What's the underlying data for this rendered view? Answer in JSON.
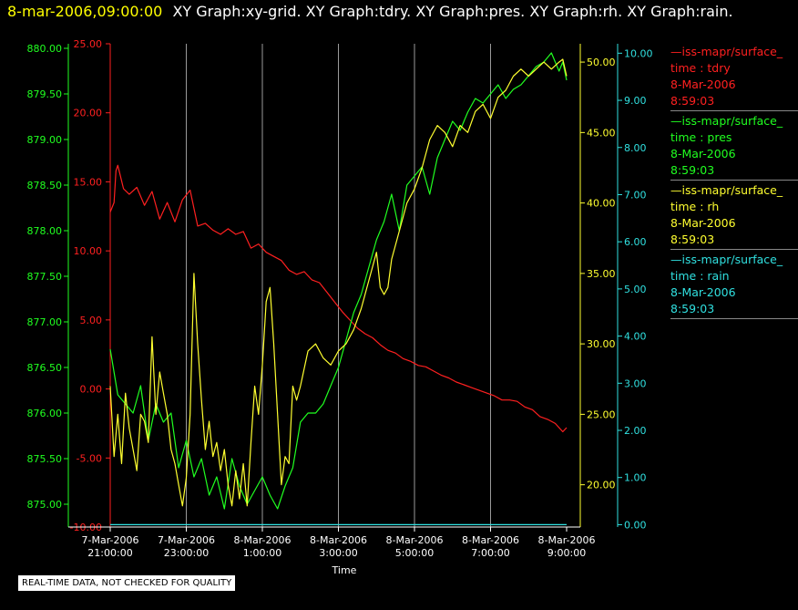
{
  "title": {
    "date": "8-mar-2006,09:00:00",
    "graphs": "XY Graph:xy-grid.  XY Graph:tdry.  XY Graph:pres.  XY Graph:rh.  XY Graph:rain."
  },
  "disclaimer": "REAL-TIME DATA, NOT CHECKED FOR QUALITY",
  "legend": [
    {
      "name": "—iss-mapr/surface_",
      "var": "time : tdry",
      "date": "8-Mar-2006",
      "time": "8:59:03",
      "color": "#ff2020"
    },
    {
      "name": "—iss-mapr/surface_",
      "var": "time : pres",
      "date": "8-Mar-2006",
      "time": "8:59:03",
      "color": "#20ff20"
    },
    {
      "name": "—iss-mapr/surface_",
      "var": "time : rh",
      "date": "8-Mar-2006",
      "time": "8:59:03",
      "color": "#ffff30"
    },
    {
      "name": "—iss-mapr/surface_",
      "var": "time : rain",
      "date": "8-Mar-2006",
      "time": "8:59:03",
      "color": "#30e0e0"
    }
  ],
  "chart_data": {
    "type": "line",
    "xlabel": "Time",
    "x_ticks": [
      {
        "date": "7-Mar-2006",
        "time": "21:00:00"
      },
      {
        "date": "7-Mar-2006",
        "time": "23:00:00"
      },
      {
        "date": "8-Mar-2006",
        "time": "1:00:00"
      },
      {
        "date": "8-Mar-2006",
        "time": "3:00:00"
      },
      {
        "date": "8-Mar-2006",
        "time": "5:00:00"
      },
      {
        "date": "8-Mar-2006",
        "time": "7:00:00"
      },
      {
        "date": "8-Mar-2006",
        "time": "9:00:00"
      }
    ],
    "x_range_hours": [
      0,
      12
    ],
    "grid": "vertical",
    "axes": {
      "tdry": {
        "color": "#ff2020",
        "range": [
          -10,
          25
        ],
        "ticks": [
          "-10.00",
          "-5.00",
          "0.00",
          "5.00",
          "10.00",
          "15.00",
          "20.00",
          "25.00"
        ]
      },
      "pres": {
        "color": "#20ff20",
        "range": [
          874.75,
          880.05
        ],
        "ticks": [
          "875.00",
          "875.50",
          "876.00",
          "876.50",
          "877.00",
          "877.50",
          "878.00",
          "878.50",
          "879.00",
          "879.50",
          "880.00"
        ]
      },
      "rh": {
        "color": "#ffff30",
        "range": [
          17.0,
          51.3
        ],
        "ticks": [
          "20.00",
          "25.00",
          "30.00",
          "35.00",
          "40.00",
          "45.00",
          "50.00"
        ]
      },
      "rain": {
        "color": "#30e0e0",
        "range": [
          -0.05,
          10.2
        ],
        "ticks": [
          "0.00",
          "1.00",
          "2.00",
          "3.00",
          "4.00",
          "5.00",
          "6.00",
          "7.00",
          "8.00",
          "9.00",
          "10.00"
        ]
      }
    },
    "series": [
      {
        "name": "tdry",
        "x": [
          0,
          0.1,
          0.15,
          0.2,
          0.35,
          0.5,
          0.7,
          0.9,
          1.1,
          1.3,
          1.5,
          1.7,
          1.9,
          2.1,
          2.3,
          2.5,
          2.7,
          2.9,
          3.1,
          3.3,
          3.5,
          3.7,
          3.9,
          4.1,
          4.3,
          4.5,
          4.7,
          4.9,
          5.1,
          5.3,
          5.5,
          5.7,
          5.9,
          6.1,
          6.3,
          6.5,
          6.7,
          6.9,
          7.1,
          7.3,
          7.5,
          7.7,
          7.9,
          8.1,
          8.3,
          8.5,
          8.7,
          8.9,
          9.1,
          9.3,
          9.5,
          9.7,
          9.9,
          10.1,
          10.3,
          10.5,
          10.7,
          10.9,
          11.1,
          11.3,
          11.5,
          11.7,
          11.9,
          12
        ],
        "y": [
          12.8,
          13.5,
          15.8,
          16.2,
          14.5,
          14.1,
          14.6,
          13.3,
          14.3,
          12.3,
          13.5,
          12.1,
          13.7,
          14.4,
          11.8,
          12.0,
          11.5,
          11.2,
          11.6,
          11.2,
          11.4,
          10.2,
          10.5,
          9.9,
          9.6,
          9.3,
          8.6,
          8.3,
          8.5,
          7.9,
          7.7,
          7.0,
          6.3,
          5.6,
          5.0,
          4.4,
          4.0,
          3.7,
          3.2,
          2.8,
          2.6,
          2.2,
          2.0,
          1.7,
          1.6,
          1.3,
          1.0,
          0.8,
          0.5,
          0.3,
          0.1,
          -0.1,
          -0.3,
          -0.5,
          -0.8,
          -0.8,
          -0.9,
          -1.3,
          -1.5,
          -2.0,
          -2.2,
          -2.5,
          -3.1,
          -2.8
        ]
      },
      {
        "name": "pres",
        "x": [
          0,
          0.2,
          0.4,
          0.6,
          0.8,
          1.0,
          1.2,
          1.4,
          1.6,
          1.8,
          2.0,
          2.2,
          2.4,
          2.6,
          2.8,
          3.0,
          3.2,
          3.4,
          3.6,
          3.8,
          4.0,
          4.2,
          4.4,
          4.6,
          4.8,
          5.0,
          5.2,
          5.4,
          5.6,
          5.8,
          6.0,
          6.2,
          6.4,
          6.6,
          6.8,
          7.0,
          7.2,
          7.4,
          7.6,
          7.8,
          8.0,
          8.2,
          8.4,
          8.6,
          8.8,
          9.0,
          9.2,
          9.4,
          9.6,
          9.8,
          10.0,
          10.2,
          10.4,
          10.6,
          10.8,
          11.0,
          11.2,
          11.4,
          11.6,
          11.8,
          11.9,
          12
        ],
        "y": [
          876.7,
          876.2,
          876.1,
          876.0,
          876.3,
          875.7,
          876.1,
          875.9,
          876.0,
          875.4,
          875.7,
          875.3,
          875.5,
          875.1,
          875.3,
          874.95,
          875.5,
          875.2,
          875.0,
          875.15,
          875.3,
          875.1,
          874.95,
          875.2,
          875.4,
          875.9,
          876.0,
          876.0,
          876.1,
          876.3,
          876.5,
          876.8,
          877.1,
          877.3,
          877.6,
          877.9,
          878.1,
          878.4,
          878.0,
          878.5,
          878.6,
          878.7,
          878.4,
          878.8,
          879.0,
          879.2,
          879.1,
          879.3,
          879.45,
          879.4,
          879.5,
          879.6,
          879.45,
          879.55,
          879.6,
          879.7,
          879.8,
          879.85,
          879.95,
          879.75,
          879.85,
          879.65
        ]
      },
      {
        "name": "rh",
        "x": [
          0,
          0.1,
          0.2,
          0.3,
          0.4,
          0.5,
          0.6,
          0.7,
          0.8,
          0.9,
          1.0,
          1.1,
          1.2,
          1.3,
          1.4,
          1.5,
          1.6,
          1.7,
          1.8,
          1.9,
          2.0,
          2.1,
          2.2,
          2.3,
          2.4,
          2.5,
          2.6,
          2.7,
          2.8,
          2.9,
          3.0,
          3.1,
          3.2,
          3.3,
          3.4,
          3.5,
          3.6,
          3.7,
          3.8,
          3.9,
          4.0,
          4.1,
          4.2,
          4.3,
          4.4,
          4.5,
          4.6,
          4.7,
          4.8,
          4.9,
          5.0,
          5.2,
          5.4,
          5.6,
          5.8,
          6.0,
          6.2,
          6.4,
          6.6,
          6.8,
          7.0,
          7.1,
          7.2,
          7.3,
          7.4,
          7.5,
          7.6,
          7.8,
          8.0,
          8.2,
          8.4,
          8.6,
          8.8,
          9.0,
          9.2,
          9.4,
          9.6,
          9.8,
          10.0,
          10.2,
          10.4,
          10.6,
          10.8,
          11.0,
          11.2,
          11.4,
          11.6,
          11.8,
          11.9,
          12
        ],
        "y": [
          27.0,
          22.0,
          25.0,
          21.5,
          26.5,
          24.0,
          22.5,
          21.0,
          25.0,
          24.5,
          23.0,
          30.5,
          25.0,
          28.0,
          26.5,
          25.0,
          22.5,
          21.5,
          20.0,
          18.5,
          20.5,
          25.0,
          35.0,
          30.0,
          26.0,
          22.5,
          24.5,
          22.0,
          23.0,
          21.0,
          22.5,
          20.0,
          18.5,
          21.0,
          19.0,
          21.5,
          18.5,
          23.0,
          27.0,
          25.0,
          28.5,
          33.0,
          34.0,
          30.0,
          25.0,
          20.0,
          22.0,
          21.5,
          27.0,
          26.0,
          27.0,
          29.5,
          30.0,
          29.0,
          28.5,
          29.5,
          30.0,
          31.0,
          32.5,
          34.5,
          36.5,
          34.0,
          33.5,
          34.0,
          36.0,
          37.0,
          38.0,
          40.0,
          41.0,
          42.5,
          44.5,
          45.5,
          45.0,
          44.0,
          45.5,
          45.0,
          46.5,
          47.0,
          46.0,
          47.5,
          48.0,
          49.0,
          49.5,
          49.0,
          49.5,
          50.0,
          49.5,
          50.0,
          50.2,
          49.0
        ]
      },
      {
        "name": "rain",
        "x": [
          0,
          12
        ],
        "y": [
          0,
          0
        ]
      }
    ]
  }
}
